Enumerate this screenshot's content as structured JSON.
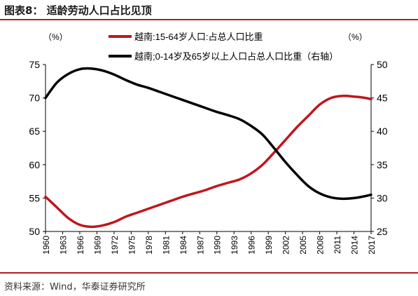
{
  "figure": {
    "title": "图表8：  适龄劳动人口占比见顶",
    "source": "资料来源：Wind，华泰证券研究所"
  },
  "colors": {
    "accent": "#b01e23",
    "series_working_age": "#c0161c",
    "series_dependent": "#000000",
    "axis": "#000000"
  },
  "chart_data": {
    "type": "line",
    "title": "",
    "xlabel": "",
    "ylabel_left": "（%）",
    "ylabel_right": "（%）",
    "ylim_left": [
      50,
      75
    ],
    "ylim_right": [
      25,
      50
    ],
    "yticks_left": [
      "50",
      "55",
      "60",
      "65",
      "70",
      "75"
    ],
    "yticks_right": [
      "25",
      "30",
      "35",
      "40",
      "45",
      "50"
    ],
    "categories": [
      "1960",
      "1963",
      "1966",
      "1969",
      "1972",
      "1975",
      "1978",
      "1981",
      "1984",
      "1987",
      "1990",
      "1993",
      "1996",
      "1999",
      "2002",
      "2005",
      "2008",
      "2011",
      "2014",
      "2017"
    ],
    "legend_placement": "top",
    "grid": false,
    "series": [
      {
        "name": "越南:15-64岁人口:占总人口比重",
        "axis": "left",
        "color": "#c0161c",
        "x": [
          1960,
          1962,
          1964,
          1966,
          1968,
          1970,
          1972,
          1974,
          1976,
          1978,
          1980,
          1982,
          1984,
          1986,
          1988,
          1990,
          1992,
          1994,
          1996,
          1998,
          2000,
          2002,
          2004,
          2006,
          2008,
          2010,
          2012,
          2014,
          2016,
          2017
        ],
        "values": [
          55.2,
          53.6,
          52.0,
          51.0,
          50.7,
          50.9,
          51.4,
          52.2,
          52.8,
          53.4,
          54.0,
          54.6,
          55.2,
          55.7,
          56.2,
          56.8,
          57.3,
          57.8,
          58.7,
          60.0,
          61.8,
          63.7,
          65.6,
          67.3,
          69.0,
          70.0,
          70.3,
          70.2,
          70.0,
          69.8
        ]
      },
      {
        "name": "越南;0-14岁及65岁以上人口占总人口比重（右轴）",
        "axis": "right",
        "color": "#000000",
        "x": [
          1960,
          1962,
          1964,
          1966,
          1968,
          1970,
          1972,
          1974,
          1976,
          1978,
          1980,
          1982,
          1984,
          1986,
          1988,
          1990,
          1992,
          1994,
          1996,
          1998,
          2000,
          2002,
          2004,
          2006,
          2008,
          2010,
          2012,
          2014,
          2016,
          2017
        ],
        "values": [
          45.0,
          47.3,
          48.6,
          49.3,
          49.4,
          49.1,
          48.5,
          47.7,
          47.0,
          46.5,
          45.9,
          45.3,
          44.7,
          44.1,
          43.5,
          42.9,
          42.4,
          41.8,
          40.8,
          39.5,
          37.5,
          35.4,
          33.5,
          31.8,
          30.7,
          30.1,
          29.9,
          30.0,
          30.3,
          30.5
        ]
      }
    ]
  }
}
